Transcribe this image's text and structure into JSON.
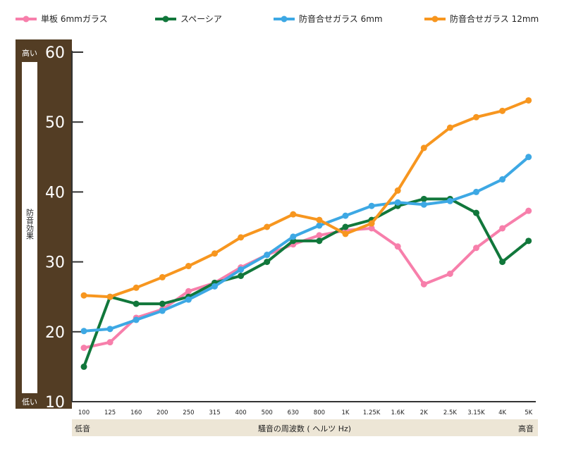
{
  "chart_data": {
    "type": "line",
    "categories": [
      "100",
      "125",
      "160",
      "200",
      "250",
      "315",
      "400",
      "500",
      "630",
      "800",
      "1K",
      "1.25K",
      "1.6K",
      "2K",
      "2.5K",
      "3.15K",
      "4K",
      "5K"
    ],
    "ylim": [
      10,
      60
    ],
    "yticks": [
      10,
      20,
      30,
      40,
      50,
      60
    ],
    "grid": false,
    "legend_position": "top",
    "series": [
      {
        "name": "単板 6mmガラス",
        "color": "#f77fab",
        "values": [
          17.7,
          18.5,
          22.0,
          23.2,
          25.8,
          27.0,
          29.2,
          31.0,
          32.5,
          33.8,
          34.5,
          34.8,
          32.2,
          26.8,
          28.3,
          32.0,
          34.8,
          37.3
        ]
      },
      {
        "name": "スペーシア",
        "color": "#11773b",
        "values": [
          15.0,
          25.0,
          24.0,
          24.0,
          25.0,
          27.0,
          28.0,
          30.0,
          33.0,
          33.0,
          35.0,
          36.0,
          38.0,
          39.0,
          39.0,
          37.0,
          30.0,
          33.0
        ]
      },
      {
        "name": "防音合せガラス 6mm",
        "color": "#3da8e4",
        "values": [
          20.1,
          20.4,
          21.7,
          23.0,
          24.6,
          26.5,
          28.9,
          31.0,
          33.6,
          35.2,
          36.6,
          38.0,
          38.5,
          38.2,
          38.7,
          40.0,
          41.8,
          45.0
        ]
      },
      {
        "name": "防音合せガラス 12mm",
        "color": "#f7961f",
        "values": [
          25.2,
          25.0,
          26.3,
          27.8,
          29.4,
          31.2,
          33.5,
          35.0,
          36.8,
          36.0,
          34.0,
          35.5,
          40.2,
          46.3,
          49.2,
          50.7,
          51.6,
          53.1
        ]
      }
    ],
    "ylabel_vertical": "防音効果",
    "ylabel_top": "高い",
    "ylabel_bottom": "低い",
    "xlabel": "騒音の周波数 ( ヘルツ Hz)",
    "xlabel_left": "低音",
    "xlabel_right": "高音"
  }
}
